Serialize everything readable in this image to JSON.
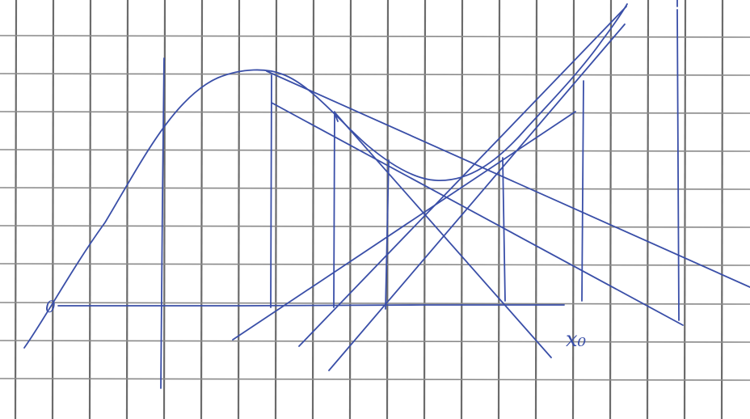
{
  "diagram": {
    "origin_label": "0",
    "point_label": "x₀"
  },
  "colors": {
    "paper": "#ffffff",
    "grid": "#6b6b6b",
    "ink": "#3a4fa8"
  }
}
